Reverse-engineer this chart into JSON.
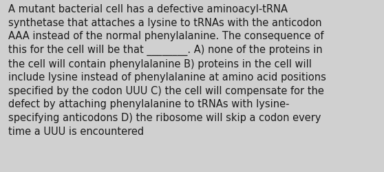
{
  "background_color": "#d0d0d0",
  "text_color": "#1a1a1a",
  "lines": [
    "A mutant bacterial cell has a defective aminoacyl-tRNA",
    "synthetase that attaches a lysine to tRNAs with the anticodon",
    "AAA instead of the normal phenylalanine. The consequence of",
    "this for the cell will be that ________. A) none of the proteins in",
    "the cell will contain phenylalanine B) proteins in the cell will",
    "include lysine instead of phenylalanine at amino acid positions",
    "specified by the codon UUU C) the cell will compensate for the",
    "defect by attaching phenylalanine to tRNAs with lysine-",
    "specifying anticodons D) the ribosome will skip a codon every",
    "time a UUU is encountered"
  ],
  "font_size": 10.5,
  "figwidth": 5.58,
  "figheight": 2.51,
  "dpi": 100
}
